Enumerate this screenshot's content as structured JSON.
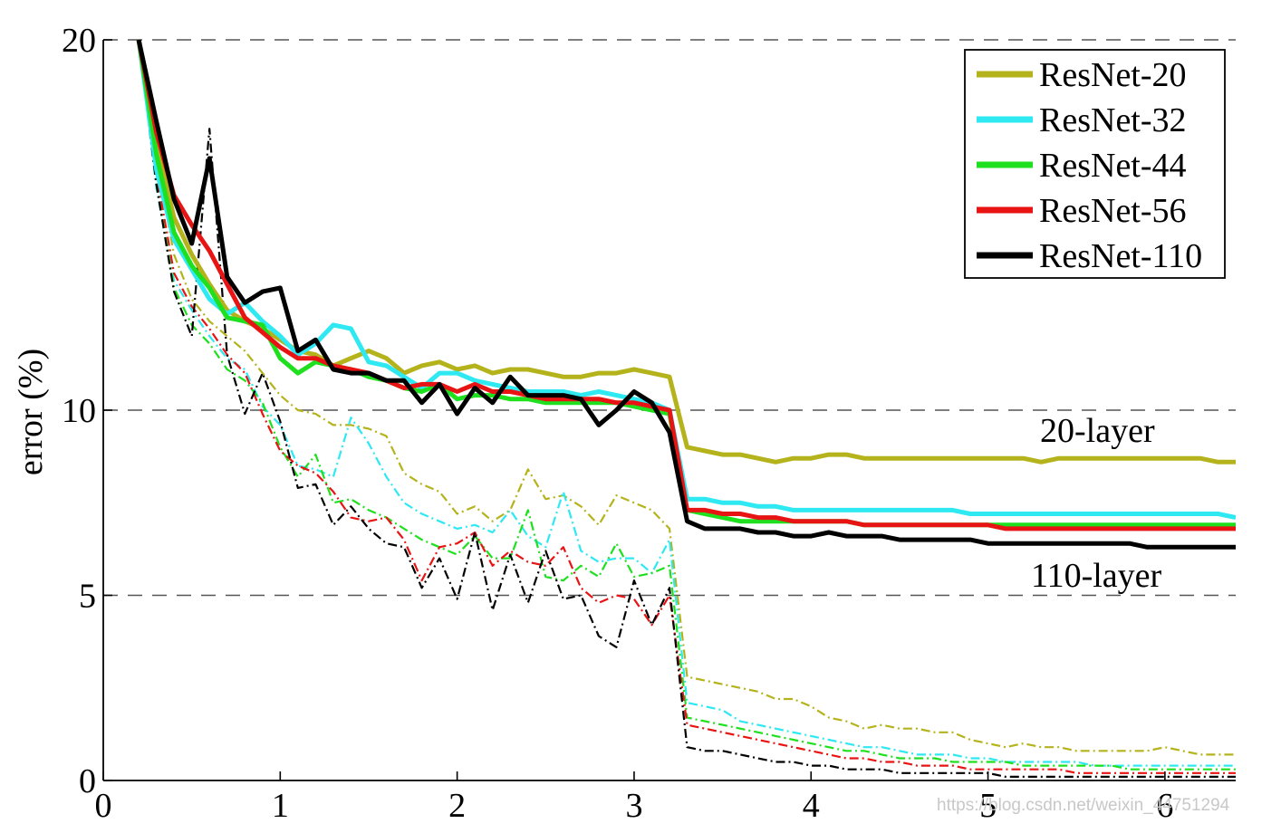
{
  "chart_data": {
    "type": "line",
    "ylabel": "error (%)",
    "xlabel": "",
    "xlim": [
      0,
      6.4
    ],
    "ylim": [
      0,
      20
    ],
    "x_ticks": [
      0,
      1,
      2,
      3,
      4,
      5,
      6
    ],
    "y_ticks": [
      0,
      5,
      10,
      20
    ],
    "grid": "dashed horizontal lines at 5, 10, 20",
    "legend_position": "top-right",
    "annotations": [
      "20-layer",
      "110-layer"
    ],
    "watermark": "https://blog.csdn.net/weixin_44751294",
    "x": [
      0.2,
      0.3,
      0.4,
      0.5,
      0.6,
      0.7,
      0.8,
      0.9,
      1.0,
      1.1,
      1.2,
      1.3,
      1.4,
      1.5,
      1.6,
      1.7,
      1.8,
      1.9,
      2.0,
      2.1,
      2.2,
      2.3,
      2.4,
      2.5,
      2.6,
      2.7,
      2.8,
      2.9,
      3.0,
      3.1,
      3.2,
      3.3,
      3.4,
      3.5,
      3.6,
      3.7,
      3.8,
      3.9,
      4.0,
      4.1,
      4.2,
      4.3,
      4.4,
      4.5,
      4.6,
      4.7,
      4.8,
      4.9,
      5.0,
      5.1,
      5.2,
      5.3,
      5.4,
      5.5,
      5.6,
      5.7,
      5.8,
      5.9,
      6.0,
      6.1,
      6.2,
      6.3,
      6.4
    ],
    "series": [
      {
        "name": "ResNet-20",
        "kind": "test",
        "color": "#b5b31b",
        "values": [
          20,
          17.2,
          15.2,
          14.2,
          13.4,
          12.7,
          12.4,
          12.2,
          11.9,
          11.6,
          11.5,
          11.2,
          11.4,
          11.6,
          11.4,
          11.0,
          11.2,
          11.3,
          11.1,
          11.2,
          11.0,
          11.1,
          11.1,
          11.0,
          10.9,
          10.9,
          11.0,
          11.0,
          11.1,
          11.0,
          10.9,
          9.0,
          8.9,
          8.8,
          8.8,
          8.7,
          8.6,
          8.7,
          8.7,
          8.8,
          8.8,
          8.7,
          8.7,
          8.7,
          8.7,
          8.7,
          8.7,
          8.7,
          8.7,
          8.7,
          8.7,
          8.6,
          8.7,
          8.7,
          8.7,
          8.7,
          8.7,
          8.7,
          8.7,
          8.7,
          8.7,
          8.6,
          8.6
        ]
      },
      {
        "name": "ResNet-32",
        "kind": "test",
        "color": "#2ee8f2",
        "values": [
          20,
          16.5,
          14.6,
          13.8,
          13.0,
          12.6,
          12.9,
          12.4,
          12.0,
          11.5,
          11.8,
          12.3,
          12.2,
          11.3,
          11.2,
          10.9,
          10.6,
          11.0,
          11.0,
          10.8,
          10.7,
          10.6,
          10.5,
          10.5,
          10.5,
          10.4,
          10.5,
          10.4,
          10.3,
          10.2,
          10.0,
          7.6,
          7.6,
          7.5,
          7.5,
          7.4,
          7.4,
          7.3,
          7.3,
          7.3,
          7.3,
          7.3,
          7.3,
          7.3,
          7.3,
          7.3,
          7.3,
          7.2,
          7.2,
          7.2,
          7.2,
          7.2,
          7.2,
          7.2,
          7.2,
          7.2,
          7.2,
          7.2,
          7.2,
          7.2,
          7.2,
          7.2,
          7.1
        ]
      },
      {
        "name": "ResNet-44",
        "kind": "test",
        "color": "#1ee01e",
        "values": [
          20,
          16.9,
          14.8,
          13.9,
          13.3,
          12.5,
          12.4,
          12.3,
          11.4,
          11.0,
          11.3,
          11.2,
          11.1,
          10.9,
          10.8,
          10.6,
          10.5,
          10.7,
          10.3,
          10.4,
          10.4,
          10.3,
          10.3,
          10.2,
          10.2,
          10.2,
          10.2,
          10.2,
          10.1,
          10.0,
          9.9,
          7.3,
          7.2,
          7.1,
          7.0,
          7.0,
          7.0,
          7.0,
          7.0,
          7.0,
          7.0,
          6.9,
          6.9,
          6.9,
          6.9,
          6.9,
          6.9,
          6.9,
          6.9,
          6.9,
          6.9,
          6.9,
          6.9,
          6.9,
          6.9,
          6.9,
          6.9,
          6.9,
          6.9,
          6.9,
          6.9,
          6.9,
          6.9
        ]
      },
      {
        "name": "ResNet-56",
        "kind": "test",
        "color": "#e81414",
        "values": [
          20,
          17.5,
          15.8,
          15.0,
          14.3,
          13.4,
          12.5,
          12.1,
          11.7,
          11.4,
          11.4,
          11.2,
          11.1,
          11.0,
          10.8,
          10.6,
          10.7,
          10.7,
          10.5,
          10.7,
          10.5,
          10.5,
          10.4,
          10.3,
          10.3,
          10.3,
          10.3,
          10.2,
          10.2,
          10.1,
          10.0,
          7.3,
          7.3,
          7.2,
          7.2,
          7.1,
          7.1,
          7.0,
          7.0,
          7.0,
          7.0,
          6.9,
          6.9,
          6.9,
          6.9,
          6.9,
          6.9,
          6.9,
          6.9,
          6.8,
          6.8,
          6.8,
          6.8,
          6.8,
          6.8,
          6.8,
          6.8,
          6.8,
          6.8,
          6.8,
          6.8,
          6.8,
          6.8
        ]
      },
      {
        "name": "ResNet-110",
        "kind": "test",
        "color": "#000000",
        "values": [
          20,
          17.8,
          15.7,
          14.5,
          16.8,
          13.6,
          12.9,
          13.2,
          13.3,
          11.6,
          11.9,
          11.1,
          11.0,
          11.0,
          10.8,
          10.8,
          10.2,
          10.7,
          9.9,
          10.6,
          10.2,
          10.9,
          10.4,
          10.4,
          10.4,
          10.3,
          9.6,
          10.0,
          10.5,
          10.2,
          9.4,
          7.0,
          6.8,
          6.8,
          6.8,
          6.7,
          6.7,
          6.6,
          6.6,
          6.7,
          6.6,
          6.6,
          6.6,
          6.5,
          6.5,
          6.5,
          6.5,
          6.5,
          6.4,
          6.4,
          6.4,
          6.4,
          6.4,
          6.4,
          6.4,
          6.4,
          6.4,
          6.3,
          6.3,
          6.3,
          6.3,
          6.3,
          6.3
        ]
      },
      {
        "name": "ResNet-20 (train)",
        "kind": "train",
        "color": "#b5b31b",
        "values": [
          20,
          16.8,
          14.2,
          13.0,
          12.4,
          12.0,
          11.6,
          11.0,
          10.4,
          10.0,
          9.9,
          9.6,
          9.6,
          9.5,
          9.3,
          8.3,
          8.0,
          7.8,
          7.2,
          7.4,
          7.0,
          7.3,
          8.4,
          7.6,
          7.7,
          7.4,
          6.9,
          7.7,
          7.5,
          7.3,
          6.8,
          2.8,
          2.7,
          2.6,
          2.5,
          2.4,
          2.2,
          2.2,
          2.0,
          1.7,
          1.6,
          1.4,
          1.5,
          1.4,
          1.4,
          1.3,
          1.3,
          1.1,
          1.0,
          0.9,
          1.0,
          0.9,
          0.9,
          0.8,
          0.8,
          0.8,
          0.8,
          0.8,
          0.9,
          0.8,
          0.7,
          0.7,
          0.7
        ]
      },
      {
        "name": "ResNet-32 (train)",
        "kind": "train",
        "color": "#2ee8f2",
        "values": [
          20,
          16.0,
          13.5,
          12.7,
          12.0,
          11.4,
          11.1,
          10.1,
          9.6,
          8.5,
          8.4,
          8.2,
          9.8,
          9.1,
          8.2,
          7.5,
          7.2,
          7.0,
          6.8,
          6.9,
          6.7,
          7.3,
          6.6,
          6.3,
          7.8,
          6.2,
          5.9,
          6.0,
          6.0,
          5.6,
          6.5,
          2.1,
          2.0,
          1.9,
          1.6,
          1.5,
          1.4,
          1.3,
          1.2,
          1.1,
          1.0,
          0.9,
          0.9,
          0.8,
          0.7,
          0.7,
          0.7,
          0.6,
          0.6,
          0.5,
          0.5,
          0.5,
          0.5,
          0.5,
          0.4,
          0.4,
          0.4,
          0.4,
          0.4,
          0.4,
          0.4,
          0.4,
          0.4
        ]
      },
      {
        "name": "ResNet-44 (train)",
        "kind": "train",
        "color": "#1ee01e",
        "values": [
          20,
          16.2,
          13.3,
          12.3,
          11.8,
          11.1,
          10.8,
          10.2,
          9.0,
          8.2,
          8.8,
          7.5,
          7.6,
          7.3,
          7.1,
          6.8,
          6.5,
          6.3,
          6.1,
          6.6,
          6.0,
          6.0,
          7.3,
          5.5,
          5.4,
          5.8,
          5.5,
          6.4,
          5.5,
          5.6,
          5.8,
          1.7,
          1.6,
          1.5,
          1.4,
          1.3,
          1.2,
          1.1,
          1.0,
          0.9,
          0.8,
          0.8,
          0.7,
          0.6,
          0.6,
          0.6,
          0.5,
          0.5,
          0.5,
          0.5,
          0.4,
          0.4,
          0.4,
          0.4,
          0.4,
          0.4,
          0.3,
          0.3,
          0.3,
          0.3,
          0.3,
          0.3,
          0.3
        ]
      },
      {
        "name": "ResNet-56 (train)",
        "kind": "train",
        "color": "#e81414",
        "values": [
          20,
          16.4,
          13.7,
          12.8,
          12.2,
          11.5,
          11.0,
          9.9,
          8.9,
          8.5,
          8.3,
          7.8,
          7.1,
          7.0,
          7.1,
          6.5,
          5.4,
          6.3,
          6.4,
          6.7,
          5.8,
          6.2,
          5.9,
          5.8,
          6.3,
          5.2,
          4.8,
          5.0,
          4.9,
          4.2,
          5.0,
          1.5,
          1.4,
          1.3,
          1.2,
          1.1,
          1.0,
          0.9,
          0.8,
          0.7,
          0.6,
          0.6,
          0.5,
          0.5,
          0.4,
          0.4,
          0.4,
          0.3,
          0.3,
          0.3,
          0.3,
          0.3,
          0.3,
          0.2,
          0.2,
          0.2,
          0.2,
          0.2,
          0.2,
          0.2,
          0.2,
          0.2,
          0.2
        ]
      },
      {
        "name": "ResNet-110 (train)",
        "kind": "train",
        "color": "#000000",
        "values": [
          20,
          16.1,
          13.2,
          12.0,
          17.6,
          11.5,
          9.9,
          11.0,
          9.7,
          7.9,
          8.0,
          6.9,
          7.4,
          6.8,
          6.4,
          6.3,
          5.2,
          6.0,
          4.9,
          6.7,
          4.6,
          6.1,
          4.8,
          6.2,
          4.9,
          5.0,
          3.9,
          3.6,
          5.4,
          4.2,
          5.2,
          0.9,
          0.8,
          0.8,
          0.7,
          0.6,
          0.5,
          0.5,
          0.4,
          0.4,
          0.3,
          0.3,
          0.3,
          0.2,
          0.2,
          0.2,
          0.2,
          0.2,
          0.2,
          0.1,
          0.1,
          0.1,
          0.1,
          0.1,
          0.1,
          0.1,
          0.1,
          0.1,
          0.1,
          0.1,
          0.1,
          0.1,
          0.1
        ]
      }
    ]
  }
}
